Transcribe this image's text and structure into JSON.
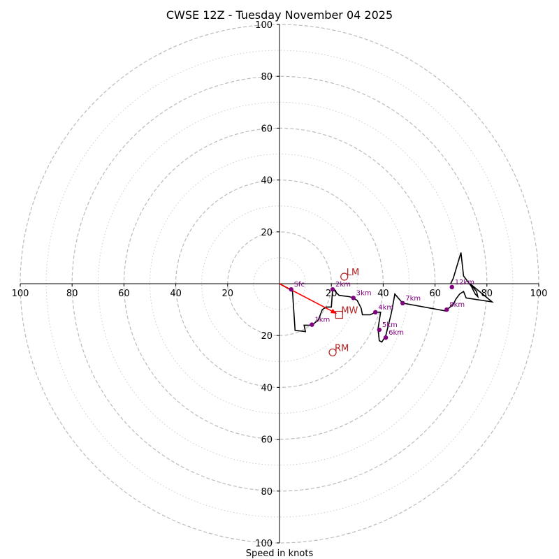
{
  "chart_data": {
    "type": "hodograph",
    "title": "CWSE 12Z - Tuesday November 04 2025",
    "xlabel": "Speed in knots",
    "range": [
      -100,
      100
    ],
    "rings_dashed": [
      20,
      40,
      60,
      80,
      100
    ],
    "rings_dotted": [
      10,
      30,
      50,
      70,
      90
    ],
    "x_tick_labels": [
      "100",
      "80",
      "60",
      "40",
      "20",
      "20",
      "40",
      "60",
      "80",
      "100"
    ],
    "y_tick_labels": [
      "100",
      "80",
      "60",
      "40",
      "20",
      "20",
      "40",
      "60",
      "80",
      "100"
    ],
    "grid": true,
    "hodograph_color": "#000000",
    "height_marker_color": "#800080",
    "motion_color": "#b22222",
    "shear_vector_color": "#ff0000",
    "hodograph": [
      [
        0,
        0
      ],
      [
        4.5,
        -2.5
      ],
      [
        5,
        -3
      ],
      [
        6,
        -18
      ],
      [
        10,
        -18.5
      ],
      [
        9.5,
        -16
      ],
      [
        12.5,
        -16
      ],
      [
        15,
        -14
      ],
      [
        16.5,
        -10
      ],
      [
        18,
        -9
      ],
      [
        20,
        -9
      ],
      [
        20.5,
        -2
      ],
      [
        23,
        -4.5
      ],
      [
        27,
        -5
      ],
      [
        28.5,
        -5.5
      ],
      [
        30,
        -6.5
      ],
      [
        31.5,
        -9.5
      ],
      [
        32,
        -12
      ],
      [
        35,
        -12
      ],
      [
        37,
        -11
      ],
      [
        39,
        -11
      ],
      [
        38,
        -17.5
      ],
      [
        38.5,
        -22
      ],
      [
        39.5,
        -22.5
      ],
      [
        41,
        -20
      ],
      [
        43,
        -12
      ],
      [
        43.5,
        -9.5
      ],
      [
        44.5,
        -4
      ],
      [
        47.5,
        -7.5
      ],
      [
        64,
        -10.5
      ],
      [
        67,
        -8
      ],
      [
        68,
        -6
      ],
      [
        69.5,
        -4
      ],
      [
        71,
        -3
      ],
      [
        72,
        -5.5
      ],
      [
        82,
        -7
      ],
      [
        73.5,
        0
      ],
      [
        76,
        -3
      ],
      [
        76.5,
        -5
      ],
      [
        75.5,
        -4
      ],
      [
        74,
        -1
      ],
      [
        71,
        3
      ],
      [
        70,
        12
      ],
      [
        67,
        2
      ],
      [
        66,
        0
      ]
    ],
    "height_markers": [
      {
        "label": "Sfc",
        "u": 4.5,
        "v": -2.2
      },
      {
        "label": "1km",
        "u": 12.5,
        "v": -15.8
      },
      {
        "label": "2km",
        "u": 20.5,
        "v": -2.2
      },
      {
        "label": "3km",
        "u": 28.5,
        "v": -5.5
      },
      {
        "label": "4km",
        "u": 37,
        "v": -11
      },
      {
        "label": "5km",
        "u": 38.5,
        "v": -17.8
      },
      {
        "label": "6km",
        "u": 41,
        "v": -20.8
      },
      {
        "label": "7km",
        "u": 47.5,
        "v": -7.5
      },
      {
        "label": "8km",
        "u": 64.5,
        "v": -10
      },
      {
        "label": "12km",
        "u": 66.5,
        "v": -1.3
      }
    ],
    "storm_motions": [
      {
        "label": "LM",
        "u": 25,
        "v": 2.7,
        "marker": "circle"
      },
      {
        "label": "MW",
        "u": 23,
        "v": -12,
        "marker": "square"
      },
      {
        "label": "RM",
        "u": 20.5,
        "v": -26.5,
        "marker": "circle"
      }
    ],
    "shear_vector": {
      "from": [
        0,
        0
      ],
      "to": [
        22,
        -11.5
      ]
    }
  }
}
